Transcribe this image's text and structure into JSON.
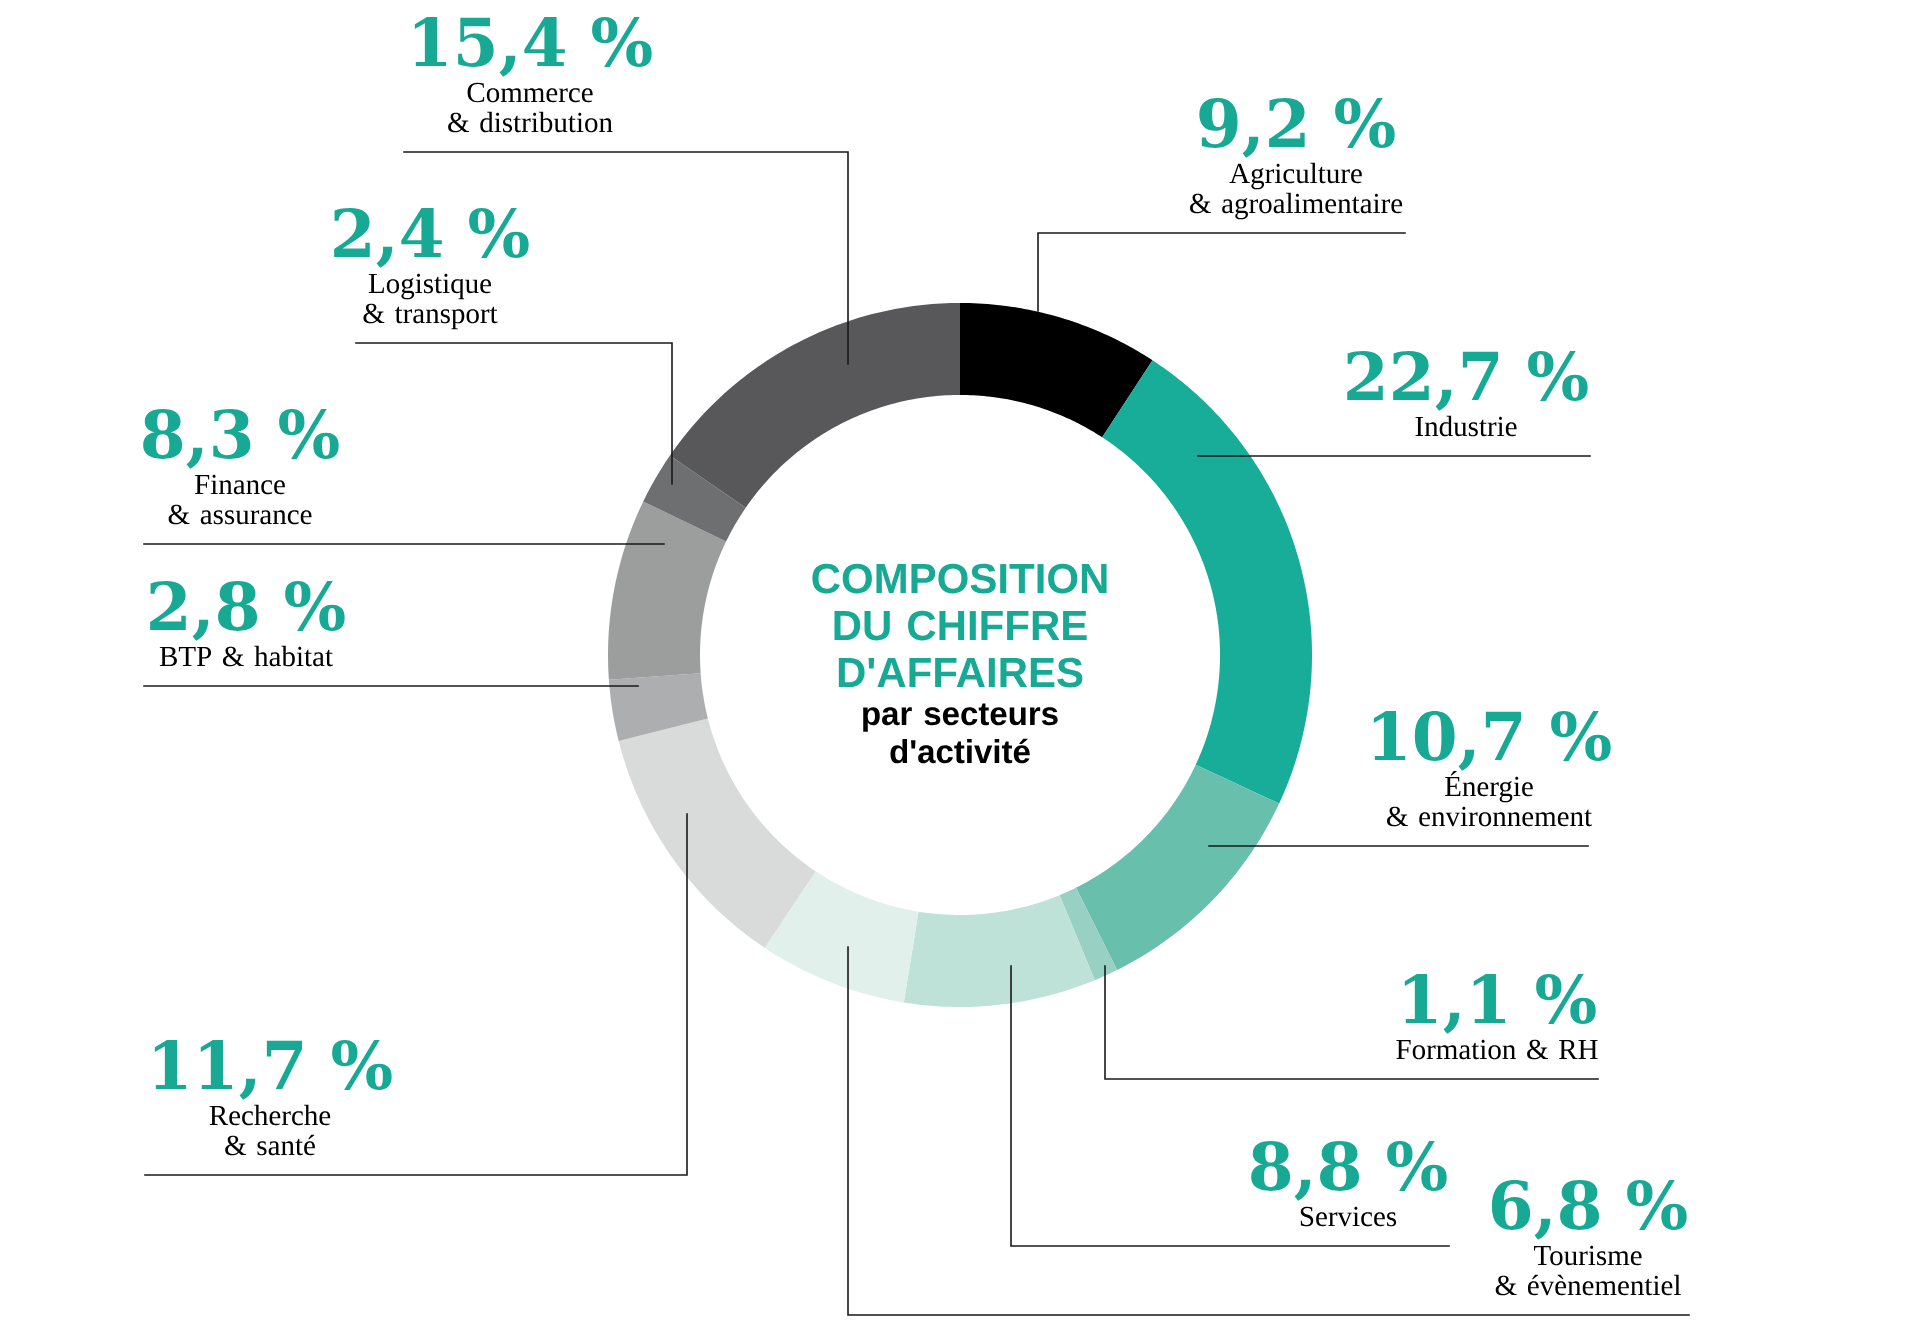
{
  "chart_data": {
    "type": "donut",
    "title": "COMPOSITION DU CHIFFRE D'AFFAIRES",
    "subtitle": "par secteurs d'activité",
    "categories": [
      "Agriculture & agroalimentaire",
      "Industrie",
      "Énergie & environnement",
      "Formation & RH",
      "Services",
      "Tourisme & évènementiel",
      "Recherche & santé",
      "BTP & habitat",
      "Finance & assurance",
      "Logistique & transport",
      "Commerce & distribution"
    ],
    "values": [
      9.2,
      22.7,
      10.7,
      1.1,
      8.8,
      6.8,
      11.7,
      2.8,
      8.3,
      2.4,
      15.4
    ],
    "colors": [
      "#000000",
      "#17ad98",
      "#68bfac",
      "#98d1c3",
      "#bee2d7",
      "#e1f0eb",
      "#d9dada",
      "#adaeb0",
      "#9c9d9d",
      "#6e6f71",
      "#58585a"
    ],
    "value_labels": [
      "9,2 %",
      "22,7 %",
      "10,7 %",
      "1,1 %",
      "8,8 %",
      "6,8 %",
      "11,7 %",
      "2,8 %",
      "8,3 %",
      "2,4 %",
      "15,4 %"
    ]
  }
}
